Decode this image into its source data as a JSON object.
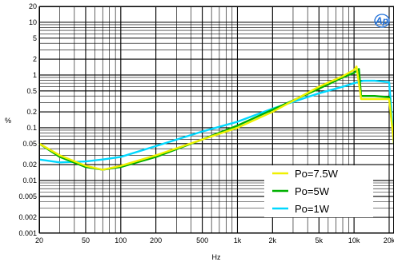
{
  "chart_data": {
    "type": "line",
    "title": "",
    "xlabel": "Hz",
    "ylabel": "%",
    "xscale": "log",
    "yscale": "log",
    "xlim": [
      20,
      22000
    ],
    "ylim": [
      0.001,
      20
    ],
    "grid": true,
    "legend_position": "bottom-right",
    "x_ticks": [
      {
        "value": 20,
        "label": "20"
      },
      {
        "value": 50,
        "label": "50"
      },
      {
        "value": 100,
        "label": "100"
      },
      {
        "value": 200,
        "label": "200"
      },
      {
        "value": 500,
        "label": "500"
      },
      {
        "value": 1000,
        "label": "1k"
      },
      {
        "value": 2000,
        "label": "2k"
      },
      {
        "value": 5000,
        "label": "5k"
      },
      {
        "value": 10000,
        "label": "10k"
      },
      {
        "value": 20000,
        "label": "20k"
      }
    ],
    "y_ticks": [
      {
        "value": 20,
        "label": "20"
      },
      {
        "value": 10,
        "label": "10"
      },
      {
        "value": 5,
        "label": "5"
      },
      {
        "value": 2,
        "label": "2"
      },
      {
        "value": 1,
        "label": "1"
      },
      {
        "value": 0.5,
        "label": "0.5"
      },
      {
        "value": 0.2,
        "label": "0.2"
      },
      {
        "value": 0.1,
        "label": "0.1"
      },
      {
        "value": 0.05,
        "label": "0.05"
      },
      {
        "value": 0.02,
        "label": "0.02"
      },
      {
        "value": 0.01,
        "label": "0.01"
      },
      {
        "value": 0.005,
        "label": "0.005"
      },
      {
        "value": 0.002,
        "label": "0.002"
      },
      {
        "value": 0.001,
        "label": "0.001"
      }
    ],
    "series": [
      {
        "name": "Po=1W",
        "color": "#00d8ff",
        "points": [
          [
            20,
            0.025
          ],
          [
            30,
            0.022
          ],
          [
            50,
            0.023
          ],
          [
            70,
            0.025
          ],
          [
            100,
            0.028
          ],
          [
            200,
            0.045
          ],
          [
            500,
            0.085
          ],
          [
            1000,
            0.13
          ],
          [
            2000,
            0.23
          ],
          [
            5000,
            0.45
          ],
          [
            8000,
            0.6
          ],
          [
            10000,
            0.7
          ],
          [
            12000,
            0.78
          ],
          [
            15000,
            0.78
          ],
          [
            20000,
            0.73
          ],
          [
            22000,
            0.05
          ]
        ]
      },
      {
        "name": "Po=5W",
        "color": "#00b000",
        "points": [
          [
            20,
            0.05
          ],
          [
            30,
            0.028
          ],
          [
            50,
            0.018
          ],
          [
            70,
            0.016
          ],
          [
            100,
            0.018
          ],
          [
            200,
            0.028
          ],
          [
            500,
            0.06
          ],
          [
            1000,
            0.11
          ],
          [
            2000,
            0.22
          ],
          [
            5000,
            0.55
          ],
          [
            8000,
            0.9
          ],
          [
            10000,
            1.1
          ],
          [
            11000,
            1.3
          ],
          [
            11500,
            0.4
          ],
          [
            15000,
            0.4
          ],
          [
            20000,
            0.38
          ],
          [
            22000,
            0.05
          ]
        ]
      },
      {
        "name": "Po=7.5W",
        "color": "#f0f000",
        "points": [
          [
            20,
            0.05
          ],
          [
            30,
            0.03
          ],
          [
            50,
            0.019
          ],
          [
            70,
            0.016
          ],
          [
            100,
            0.019
          ],
          [
            200,
            0.03
          ],
          [
            500,
            0.06
          ],
          [
            1000,
            0.1
          ],
          [
            2000,
            0.2
          ],
          [
            5000,
            0.6
          ],
          [
            8000,
            0.95
          ],
          [
            10000,
            1.25
          ],
          [
            10500,
            1.45
          ],
          [
            11500,
            0.35
          ],
          [
            15000,
            0.35
          ],
          [
            20000,
            0.35
          ],
          [
            22000,
            0.05
          ]
        ]
      }
    ]
  },
  "logo": {
    "text": "Ap",
    "color": "#1e6fd9"
  }
}
